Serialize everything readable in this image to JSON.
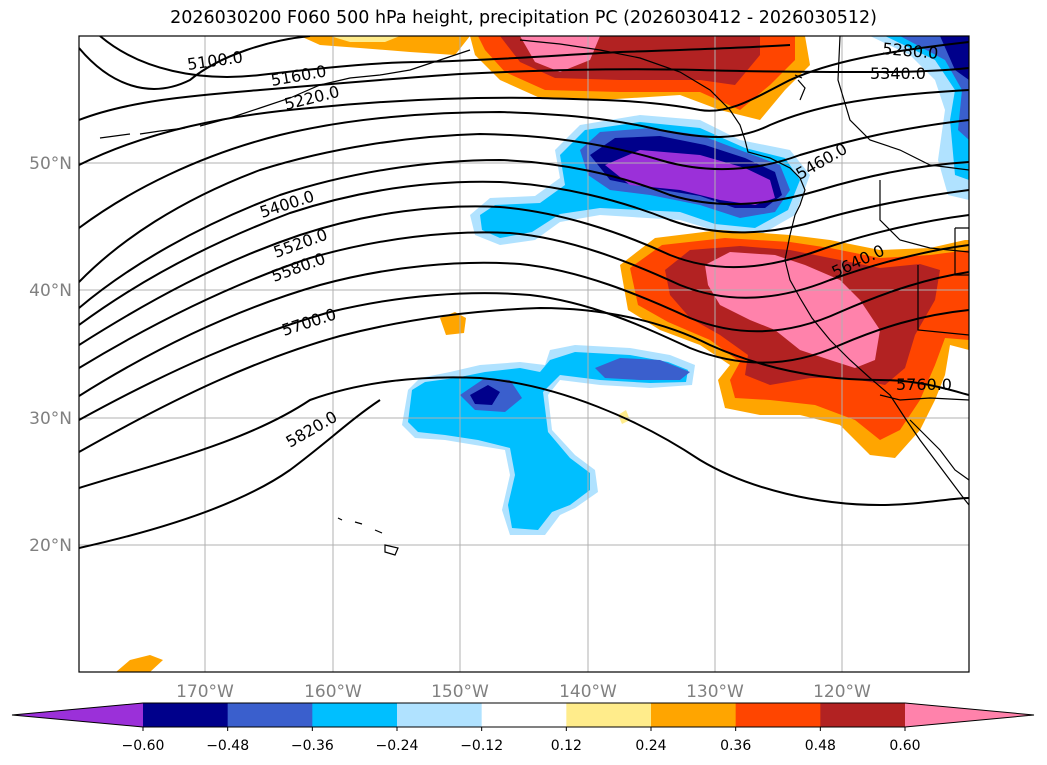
{
  "title": "2026030200 F060 500 hPa height, precipitation PC (2026030412 - 2026030512)",
  "lat_labels": [
    "50°N",
    "40°N",
    "30°N",
    "20°N"
  ],
  "lon_labels": [
    "170°W",
    "160°W",
    "150°W",
    "140°W",
    "130°W",
    "120°W"
  ],
  "contour_labels": [
    "5100.0",
    "5160.0",
    "5220.0",
    "5280.0",
    "5340.0",
    "5400.0",
    "5460.0",
    "5520.0",
    "5580.0",
    "5640.0",
    "5700.0",
    "5760.0",
    "5820.0"
  ],
  "colorbar": {
    "tick_labels": [
      "−0.60",
      "−0.48",
      "−0.36",
      "−0.24",
      "−0.12",
      "0.12",
      "0.24",
      "0.36",
      "0.48",
      "0.60"
    ],
    "colors": [
      "#9b30d9",
      "#00008b",
      "#3a5fcd",
      "#00bfff",
      "#b0e2ff",
      "#ffffff",
      "#ffec8b",
      "#ffa500",
      "#ff4500",
      "#b22222",
      "#ff82ab"
    ]
  },
  "colors": {
    "strong_negative": "#9b30d9",
    "negative_2": "#00008b",
    "negative_3": "#3a5fcd",
    "negative_4": "#00bfff",
    "negative_5": "#b0e2ff",
    "positive_1": "#ffec8b",
    "positive_2": "#ffa500",
    "positive_3": "#ff4500",
    "positive_4": "#b22222",
    "positive_5": "#ff82ab",
    "gridline": "#b0b0b0",
    "contour": "#000000"
  }
}
